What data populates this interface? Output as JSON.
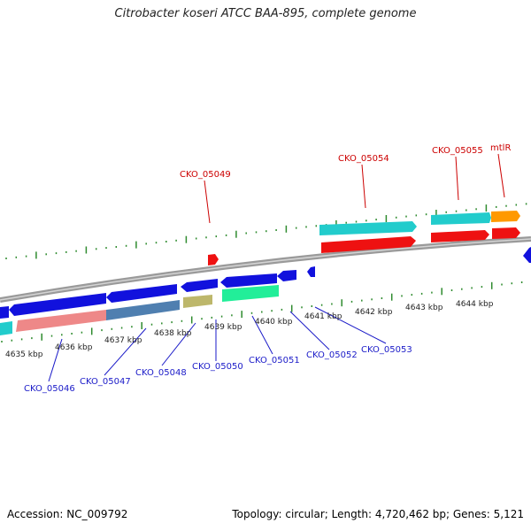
{
  "title": "Citrobacter koseri ATCC BAA-895, complete genome",
  "footer": {
    "accession": "Accession: NC_009792",
    "info": "Topology: circular; Length: 4,720,462 bp; Genes: 5,121"
  },
  "scale_labels": [
    "4635 kbp",
    "4636 kbp",
    "4637 kbp",
    "4638 kbp",
    "4639 kbp",
    "4640 kbp",
    "4641 kbp",
    "4642 kbp",
    "4643 kbp",
    "4644 kbp"
  ],
  "gene_labels_top": [
    "CKO_05049",
    "CKO_05054",
    "CKO_05055",
    "mtlR"
  ],
  "gene_labels_bottom": [
    "CKO_05046",
    "CKO_05047",
    "CKO_05048",
    "CKO_05050",
    "CKO_05051",
    "CKO_05052",
    "CKO_05053"
  ],
  "colors": {
    "background": "#ffffff",
    "backbone": "#8a8a8a",
    "tick": "#2e8b2e",
    "label_top": "#cc0000",
    "label_bottom": "#1a1ac8",
    "cds_forward": "#ee1111",
    "cds_reverse": "#1111dd",
    "teal": "#22cccc",
    "orange": "#ff9900",
    "salmon": "#ee8888",
    "steel": "#4f7fb0",
    "khaki": "#bdb76b",
    "spring": "#22ee99"
  }
}
